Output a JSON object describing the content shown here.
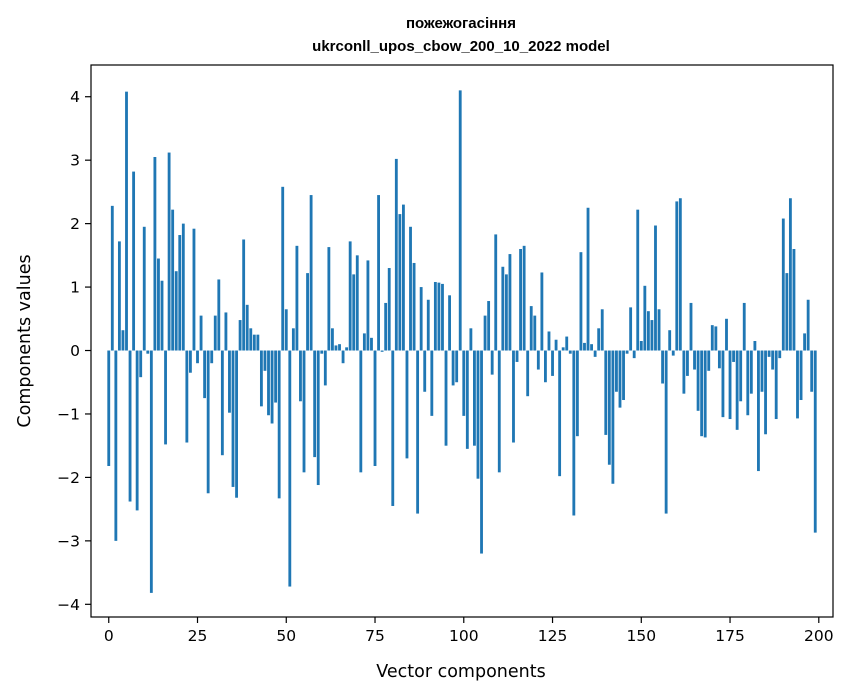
{
  "chart_data": {
    "type": "bar",
    "title": "пожежогасіння",
    "subtitle": "ukrconll_upos_cbow_200_10_2022 model",
    "xlabel": "Vector components",
    "ylabel": "Components values",
    "xlim": [
      -5,
      204
    ],
    "ylim": [
      -4.2,
      4.5
    ],
    "xticks": [
      0,
      25,
      50,
      75,
      100,
      125,
      150,
      175,
      200
    ],
    "yticks": [
      -4,
      -3,
      -2,
      -1,
      0,
      1,
      2,
      3,
      4
    ],
    "xtick_labels": [
      "0",
      "25",
      "50",
      "75",
      "100",
      "125",
      "150",
      "175",
      "200"
    ],
    "ytick_labels": [
      "−4",
      "−3",
      "−2",
      "−1",
      "0",
      "1",
      "2",
      "3",
      "4"
    ],
    "bar_color": "#1f77b4",
    "grid": false,
    "x": [
      0,
      1,
      2,
      3,
      4,
      5,
      6,
      7,
      8,
      9,
      10,
      11,
      12,
      13,
      14,
      15,
      16,
      17,
      18,
      19,
      20,
      21,
      22,
      23,
      24,
      25,
      26,
      27,
      28,
      29,
      30,
      31,
      32,
      33,
      34,
      35,
      36,
      37,
      38,
      39,
      40,
      41,
      42,
      43,
      44,
      45,
      46,
      47,
      48,
      49,
      50,
      51,
      52,
      53,
      54,
      55,
      56,
      57,
      58,
      59,
      60,
      61,
      62,
      63,
      64,
      65,
      66,
      67,
      68,
      69,
      70,
      71,
      72,
      73,
      74,
      75,
      76,
      77,
      78,
      79,
      80,
      81,
      82,
      83,
      84,
      85,
      86,
      87,
      88,
      89,
      90,
      91,
      92,
      93,
      94,
      95,
      96,
      97,
      98,
      99,
      100,
      101,
      102,
      103,
      104,
      105,
      106,
      107,
      108,
      109,
      110,
      111,
      112,
      113,
      114,
      115,
      116,
      117,
      118,
      119,
      120,
      121,
      122,
      123,
      124,
      125,
      126,
      127,
      128,
      129,
      130,
      131,
      132,
      133,
      134,
      135,
      136,
      137,
      138,
      139,
      140,
      141,
      142,
      143,
      144,
      145,
      146,
      147,
      148,
      149,
      150,
      151,
      152,
      153,
      154,
      155,
      156,
      157,
      158,
      159,
      160,
      161,
      162,
      163,
      164,
      165,
      166,
      167,
      168,
      169,
      170,
      171,
      172,
      173,
      174,
      175,
      176,
      177,
      178,
      179,
      180,
      181,
      182,
      183,
      184,
      185,
      186,
      187,
      188,
      189,
      190,
      191,
      192,
      193,
      194,
      195,
      196,
      197,
      198,
      199
    ],
    "values": [
      -1.82,
      2.28,
      -3.0,
      1.72,
      0.32,
      4.08,
      -2.38,
      2.82,
      -2.52,
      -0.42,
      1.95,
      -0.05,
      -3.82,
      3.05,
      1.45,
      1.1,
      -1.48,
      3.12,
      2.22,
      1.25,
      1.82,
      2.0,
      -1.45,
      -0.35,
      1.92,
      -0.2,
      0.55,
      -0.75,
      -2.25,
      -0.2,
      0.55,
      1.12,
      -1.65,
      0.6,
      -0.98,
      -2.15,
      -2.32,
      0.48,
      1.75,
      0.72,
      0.35,
      0.25,
      0.25,
      -0.88,
      -0.32,
      -1.02,
      -1.15,
      -0.82,
      -2.33,
      2.58,
      0.65,
      -3.72,
      0.35,
      1.65,
      -0.8,
      -1.92,
      1.22,
      2.45,
      -1.68,
      -2.12,
      -0.05,
      -0.55,
      1.63,
      0.35,
      0.08,
      0.1,
      -0.2,
      0.05,
      1.72,
      1.2,
      1.5,
      -1.92,
      0.27,
      1.42,
      0.2,
      -1.82,
      2.45,
      -0.02,
      0.75,
      1.3,
      -2.45,
      3.02,
      2.15,
      2.3,
      -1.7,
      1.95,
      1.38,
      -2.57,
      1.0,
      -0.65,
      0.8,
      -1.03,
      1.08,
      1.07,
      1.05,
      -1.5,
      0.87,
      -0.55,
      -0.5,
      4.1,
      -1.03,
      -1.55,
      0.35,
      -1.5,
      -2.02,
      -3.2,
      0.55,
      0.78,
      -0.38,
      1.83,
      -1.92,
      1.32,
      1.2,
      1.52,
      -1.45,
      -0.18,
      1.6,
      1.65,
      -0.72,
      0.7,
      0.55,
      -0.3,
      1.23,
      -0.5,
      0.3,
      -0.4,
      0.17,
      -1.98,
      0.05,
      0.22,
      -0.05,
      -2.6,
      -1.35,
      1.55,
      0.12,
      2.25,
      0.1,
      -0.1,
      0.35,
      0.65,
      -1.33,
      -1.8,
      -2.1,
      -0.65,
      -0.9,
      -0.78,
      -0.05,
      0.68,
      -0.12,
      2.22,
      0.15,
      1.02,
      0.62,
      0.48,
      1.97,
      0.65,
      -0.52,
      -2.57,
      0.32,
      -0.08,
      2.35,
      2.4,
      -0.68,
      -0.4,
      0.75,
      -0.3,
      -0.95,
      -1.35,
      -1.37,
      -0.32,
      0.4,
      0.38,
      -0.28,
      -1.05,
      0.5,
      -1.08,
      -0.18,
      -1.25,
      -0.8,
      0.75,
      -1.02,
      -0.68,
      0.15,
      -1.9,
      -0.65,
      -1.32,
      -0.1,
      -0.3,
      -1.08,
      -0.12,
      2.08,
      1.22,
      2.4,
      1.6,
      -1.07,
      -0.78,
      0.27,
      0.8,
      -0.65,
      -2.87
    ]
  }
}
